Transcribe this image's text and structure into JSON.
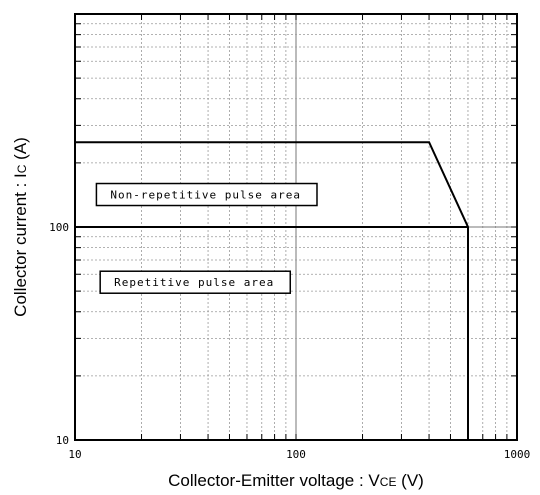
{
  "chart_data": {
    "type": "line",
    "title": "",
    "xlabel": "Collector-Emitter voltage : VCE (V)",
    "xlabel_parts": {
      "prefix": "Collector-Emitter voltage : V",
      "sub": "CE",
      "suffix": " (V)"
    },
    "ylabel": "Collector current : IC (A)",
    "ylabel_parts": {
      "prefix": "Collector current  : I",
      "sub": "C",
      "suffix": " (A)"
    },
    "xscale": "log",
    "yscale": "log",
    "xlim": [
      10,
      1000
    ],
    "ylim": [
      10,
      1000
    ],
    "xticks": [
      {
        "value": 10,
        "label": "10"
      },
      {
        "value": 100,
        "label": "100"
      },
      {
        "value": 1000,
        "label": "1000"
      }
    ],
    "yticks": [
      {
        "value": 10,
        "label": "10"
      },
      {
        "value": 100,
        "label": "100"
      }
    ],
    "grid": true,
    "series": [
      {
        "x": [
          10,
          400,
          600,
          600
        ],
        "y": [
          250,
          250,
          100,
          10
        ]
      },
      {
        "x": [
          10,
          600
        ],
        "y": [
          100,
          100
        ]
      }
    ],
    "annotations": [
      {
        "text": "Non-repetitive pulse area",
        "x": 12.5,
        "y": 160
      },
      {
        "text": "Repetitive pulse area",
        "x": 13,
        "y": 62
      }
    ]
  }
}
